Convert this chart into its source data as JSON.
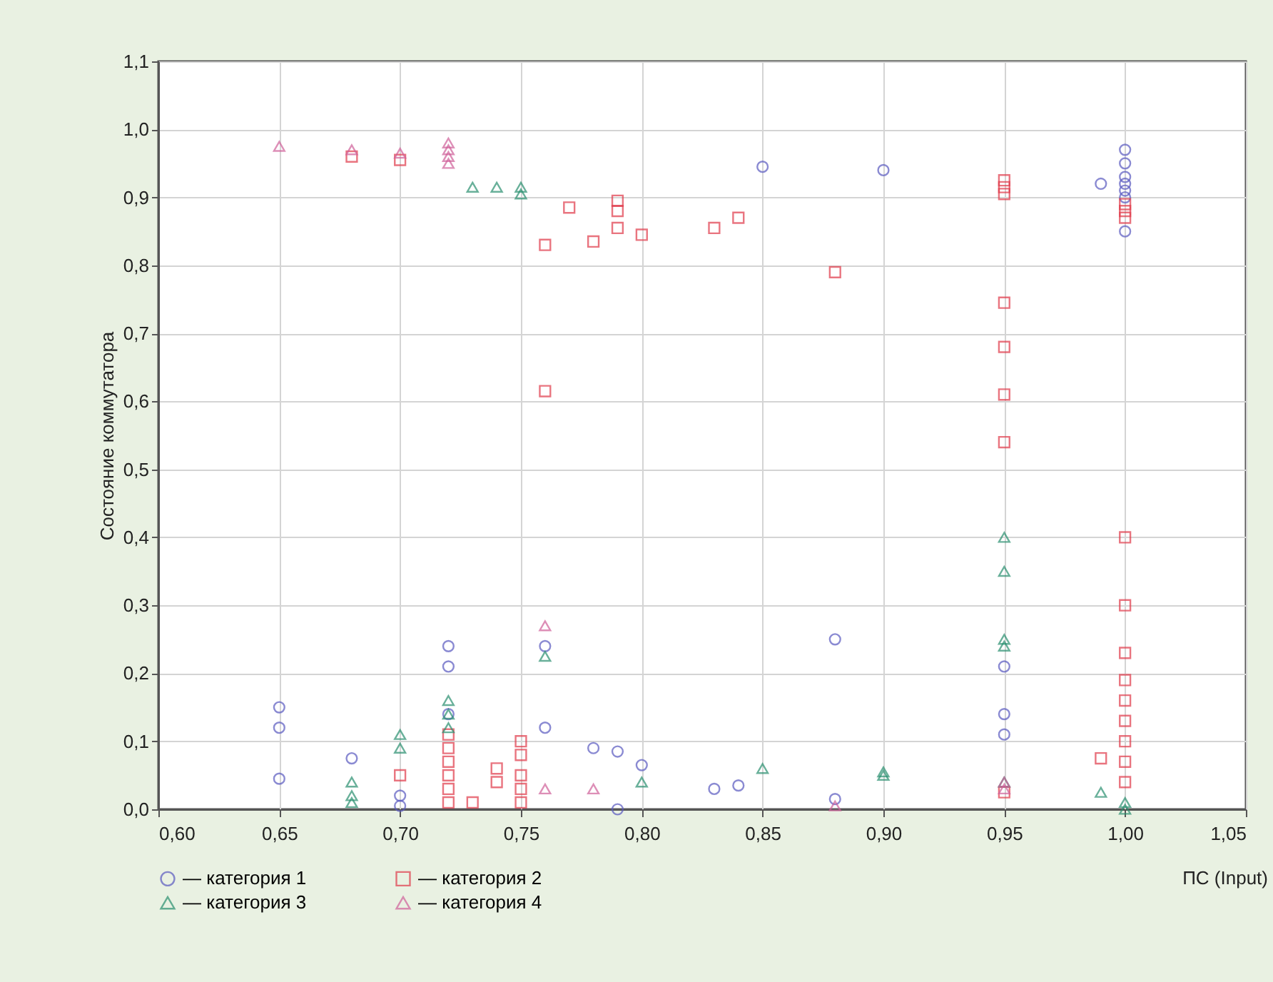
{
  "chart_data": {
    "type": "scatter",
    "xlabel": "ПС (Input)",
    "ylabel": "Состояние коммутатора",
    "xlim": [
      0.6,
      1.05
    ],
    "ylim": [
      0,
      1.1
    ],
    "xticks": [
      {
        "value": 0.6,
        "label": "0,60"
      },
      {
        "value": 0.65,
        "label": "0,65"
      },
      {
        "value": 0.7,
        "label": "0,70"
      },
      {
        "value": 0.75,
        "label": "0,75"
      },
      {
        "value": 0.8,
        "label": "0,80"
      },
      {
        "value": 0.85,
        "label": "0,85"
      },
      {
        "value": 0.9,
        "label": "0,90"
      },
      {
        "value": 0.95,
        "label": "0,95"
      },
      {
        "value": 1.0,
        "label": "1,00"
      },
      {
        "value": 1.05,
        "label": "1,05"
      }
    ],
    "yticks": [
      {
        "value": 0,
        "label": "0,0"
      },
      {
        "value": 0.1,
        "label": "0,1"
      },
      {
        "value": 0.2,
        "label": "0,2"
      },
      {
        "value": 0.3,
        "label": "0,3"
      },
      {
        "value": 0.4,
        "label": "0,4"
      },
      {
        "value": 0.5,
        "label": "0,5"
      },
      {
        "value": 0.6,
        "label": "0,6"
      },
      {
        "value": 0.7,
        "label": "0,7"
      },
      {
        "value": 0.8,
        "label": "0,8"
      },
      {
        "value": 0.9,
        "label": "0,9"
      },
      {
        "value": 1.0,
        "label": "1,0"
      },
      {
        "value": 1.1,
        "label": "1,1"
      }
    ],
    "grid": true,
    "legend": "bottom left",
    "series": [
      {
        "name": "— категория 1",
        "color": "#5a5ac0",
        "marker": "circle",
        "x": [
          0.65,
          0.65,
          0.65,
          0.68,
          0.7,
          0.7,
          0.72,
          0.72,
          0.72,
          0.76,
          0.76,
          0.78,
          0.79,
          0.79,
          0.8,
          0.83,
          0.84,
          0.85,
          0.88,
          0.88,
          0.9,
          0.95,
          0.95,
          0.95,
          0.99,
          1.0,
          1.0,
          1.0,
          1.0,
          1.0,
          1.0,
          1.0
        ],
        "values": [
          0.15,
          0.12,
          0.045,
          0.075,
          0.02,
          0.005,
          0.24,
          0.21,
          0.14,
          0.24,
          0.12,
          0.09,
          0.085,
          0.0,
          0.065,
          0.03,
          0.035,
          0.945,
          0.25,
          0.015,
          0.94,
          0.21,
          0.14,
          0.11,
          0.92,
          0.97,
          0.95,
          0.93,
          0.92,
          0.91,
          0.9,
          0.85
        ]
      },
      {
        "name": "— категория 2",
        "color": "#e03a4a",
        "marker": "square",
        "x": [
          0.68,
          0.7,
          0.7,
          0.72,
          0.72,
          0.72,
          0.72,
          0.72,
          0.72,
          0.73,
          0.74,
          0.74,
          0.75,
          0.75,
          0.75,
          0.75,
          0.75,
          0.76,
          0.76,
          0.77,
          0.78,
          0.79,
          0.79,
          0.79,
          0.8,
          0.83,
          0.84,
          0.88,
          0.95,
          0.95,
          0.95,
          0.95,
          0.95,
          0.95,
          0.95,
          0.95,
          0.99,
          1.0,
          1.0,
          1.0,
          1.0,
          1.0,
          1.0,
          1.0,
          1.0,
          1.0,
          1.0,
          1.0,
          1.0
        ],
        "values": [
          0.96,
          0.955,
          0.05,
          0.11,
          0.09,
          0.07,
          0.05,
          0.03,
          0.01,
          0.01,
          0.06,
          0.04,
          0.1,
          0.08,
          0.05,
          0.03,
          0.01,
          0.83,
          0.615,
          0.885,
          0.835,
          0.895,
          0.88,
          0.855,
          0.845,
          0.855,
          0.87,
          0.79,
          0.925,
          0.915,
          0.905,
          0.745,
          0.68,
          0.61,
          0.54,
          0.025,
          0.075,
          0.89,
          0.88,
          0.87,
          0.4,
          0.3,
          0.23,
          0.19,
          0.16,
          0.13,
          0.1,
          0.07,
          0.04
        ]
      },
      {
        "name": "— категория 3",
        "color": "#2a9070",
        "marker": "triangle",
        "x": [
          0.68,
          0.68,
          0.68,
          0.7,
          0.7,
          0.72,
          0.72,
          0.72,
          0.73,
          0.74,
          0.75,
          0.75,
          0.76,
          0.8,
          0.85,
          0.9,
          0.9,
          0.95,
          0.95,
          0.95,
          0.95,
          0.95,
          0.99,
          1.0,
          1.0
        ],
        "values": [
          0.04,
          0.02,
          0.01,
          0.11,
          0.09,
          0.16,
          0.14,
          0.12,
          0.915,
          0.915,
          0.915,
          0.905,
          0.225,
          0.04,
          0.06,
          0.055,
          0.05,
          0.4,
          0.35,
          0.25,
          0.24,
          0.04,
          0.025,
          0.01,
          0.0
        ]
      },
      {
        "name": "— категория 4",
        "color": "#d0609a",
        "marker": "triangle",
        "x": [
          0.65,
          0.68,
          0.7,
          0.72,
          0.72,
          0.72,
          0.72,
          0.76,
          0.76,
          0.78,
          0.88,
          0.95,
          0.95
        ],
        "values": [
          0.975,
          0.97,
          0.965,
          0.98,
          0.97,
          0.96,
          0.95,
          0.27,
          0.03,
          0.03,
          0.005,
          0.03,
          0.04
        ]
      }
    ]
  }
}
